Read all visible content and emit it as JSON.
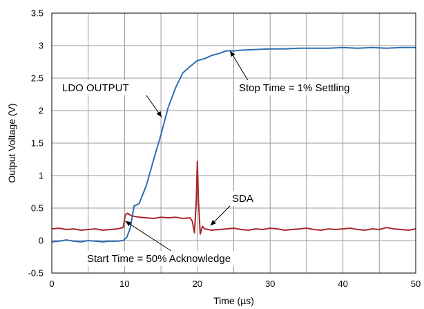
{
  "colors": {
    "ldo": "#2e6db4",
    "sda": "#a8262b",
    "grid": "#9a9a9a",
    "frame": "#000000",
    "annotation_box": "#ffffff"
  },
  "chart_data": {
    "type": "line",
    "title": "",
    "xlabel": "Time (µs)",
    "ylabel": "Output Voltage (V)",
    "xlim": [
      0,
      50
    ],
    "ylim": [
      -0.5,
      3.5
    ],
    "xticks": [
      "0",
      "10",
      "20",
      "30",
      "40",
      "50"
    ],
    "yticks": [
      "-0.5",
      "0",
      "0.5",
      "1",
      "1.5",
      "2",
      "2.5",
      "3",
      "3.5"
    ],
    "grid": true,
    "series": [
      {
        "name": "LDO OUTPUT",
        "x": [
          0,
          1,
          2,
          3,
          4,
          5,
          6,
          7,
          8,
          9,
          9.8,
          10.3,
          10.8,
          11.3,
          12,
          13,
          14,
          15,
          16,
          17,
          18,
          19,
          20,
          21,
          22,
          23,
          24,
          25,
          26,
          28,
          30,
          32,
          34,
          36,
          38,
          40,
          42,
          44,
          46,
          48,
          50
        ],
        "y": [
          -0.02,
          -0.01,
          0.01,
          -0.01,
          -0.02,
          0.0,
          -0.01,
          -0.02,
          -0.01,
          -0.01,
          0.0,
          0.05,
          0.2,
          0.53,
          0.57,
          0.85,
          1.25,
          1.63,
          2.05,
          2.35,
          2.58,
          2.68,
          2.77,
          2.8,
          2.85,
          2.88,
          2.92,
          2.92,
          2.93,
          2.94,
          2.95,
          2.95,
          2.96,
          2.96,
          2.96,
          2.97,
          2.96,
          2.97,
          2.96,
          2.97,
          2.97
        ]
      },
      {
        "name": "SDA",
        "x": [
          0,
          1,
          2,
          3,
          4,
          5,
          6,
          7,
          8,
          9,
          9.8,
          10.1,
          10.4,
          11,
          12,
          13,
          14,
          15,
          16,
          17,
          18,
          19,
          19.3,
          19.6,
          19.85,
          20.0,
          20.15,
          20.4,
          20.7,
          21,
          22,
          23,
          24,
          25,
          26,
          27,
          28,
          29,
          30,
          31,
          32,
          33,
          34,
          35,
          36,
          37,
          38,
          39,
          40,
          41,
          42,
          43,
          44,
          45,
          46,
          47,
          48,
          49,
          50
        ],
        "y": [
          0.18,
          0.19,
          0.17,
          0.18,
          0.16,
          0.17,
          0.18,
          0.16,
          0.17,
          0.18,
          0.2,
          0.4,
          0.42,
          0.38,
          0.36,
          0.35,
          0.34,
          0.36,
          0.35,
          0.36,
          0.34,
          0.35,
          0.3,
          0.12,
          0.6,
          1.22,
          0.6,
          0.1,
          0.22,
          0.18,
          0.16,
          0.17,
          0.18,
          0.19,
          0.17,
          0.16,
          0.18,
          0.17,
          0.19,
          0.18,
          0.16,
          0.17,
          0.18,
          0.19,
          0.17,
          0.16,
          0.18,
          0.17,
          0.18,
          0.19,
          0.17,
          0.16,
          0.18,
          0.17,
          0.2,
          0.18,
          0.17,
          0.16,
          0.18
        ]
      }
    ],
    "annotations": [
      {
        "text": "LDO OUTPUT",
        "target": [
          15.1,
          1.9
        ]
      },
      {
        "text": "Stop Time = 1% Settling",
        "target": [
          24.5,
          2.92
        ]
      },
      {
        "text": "SDA",
        "target": [
          21.8,
          0.23
        ]
      },
      {
        "text": "Start Time = 50% Acknowledge",
        "target": [
          10.1,
          0.3
        ]
      }
    ]
  }
}
